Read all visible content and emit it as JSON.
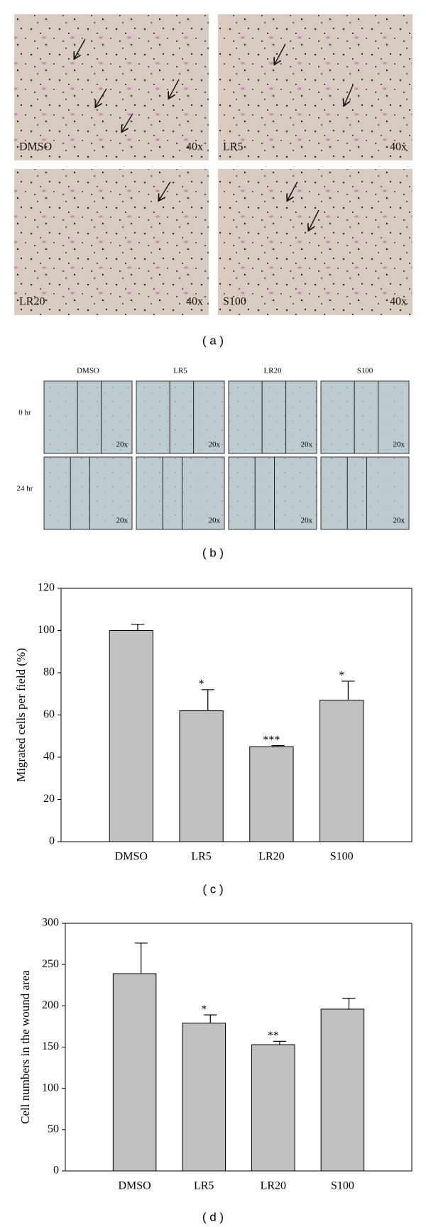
{
  "panel_a": {
    "caption": "( a )",
    "images": [
      {
        "label": "DMSO",
        "magnification": "40x"
      },
      {
        "label": "LR5",
        "magnification": "40x"
      },
      {
        "label": "LR20",
        "magnification": "40x"
      },
      {
        "label": "S100",
        "magnification": "40x"
      }
    ]
  },
  "panel_b": {
    "caption": "( b )",
    "columns": [
      "DMSO",
      "LR5",
      "LR20",
      "S100"
    ],
    "rows": [
      "0 hr",
      "24 hr"
    ],
    "magnification": "20x"
  },
  "chart_data": [
    {
      "type": "bar",
      "caption": "( c )",
      "y_label": "Migrated cells per field (%)",
      "categories": [
        "DMSO",
        "LR5",
        "LR20",
        "S100"
      ],
      "values": [
        100,
        62,
        45,
        67
      ],
      "errors": [
        3,
        10,
        0.5,
        9
      ],
      "significance": [
        null,
        "*",
        "***",
        "*"
      ],
      "color": "#c0c0c0",
      "ylim": [
        0,
        120
      ],
      "yticks": [
        0,
        20,
        40,
        60,
        80,
        100,
        120
      ]
    },
    {
      "type": "bar",
      "caption": "( d )",
      "y_label": "Cell numbers in the wound area",
      "categories": [
        "DMSO",
        "LR5",
        "LR20",
        "S100"
      ],
      "values": [
        239,
        179,
        153,
        196
      ],
      "errors": [
        37,
        10,
        4,
        13
      ],
      "significance": [
        null,
        "*",
        "**",
        null
      ],
      "color": "#c0c0c0",
      "ylim": [
        0,
        300
      ],
      "yticks": [
        0,
        50,
        100,
        150,
        200,
        250,
        300
      ]
    }
  ]
}
